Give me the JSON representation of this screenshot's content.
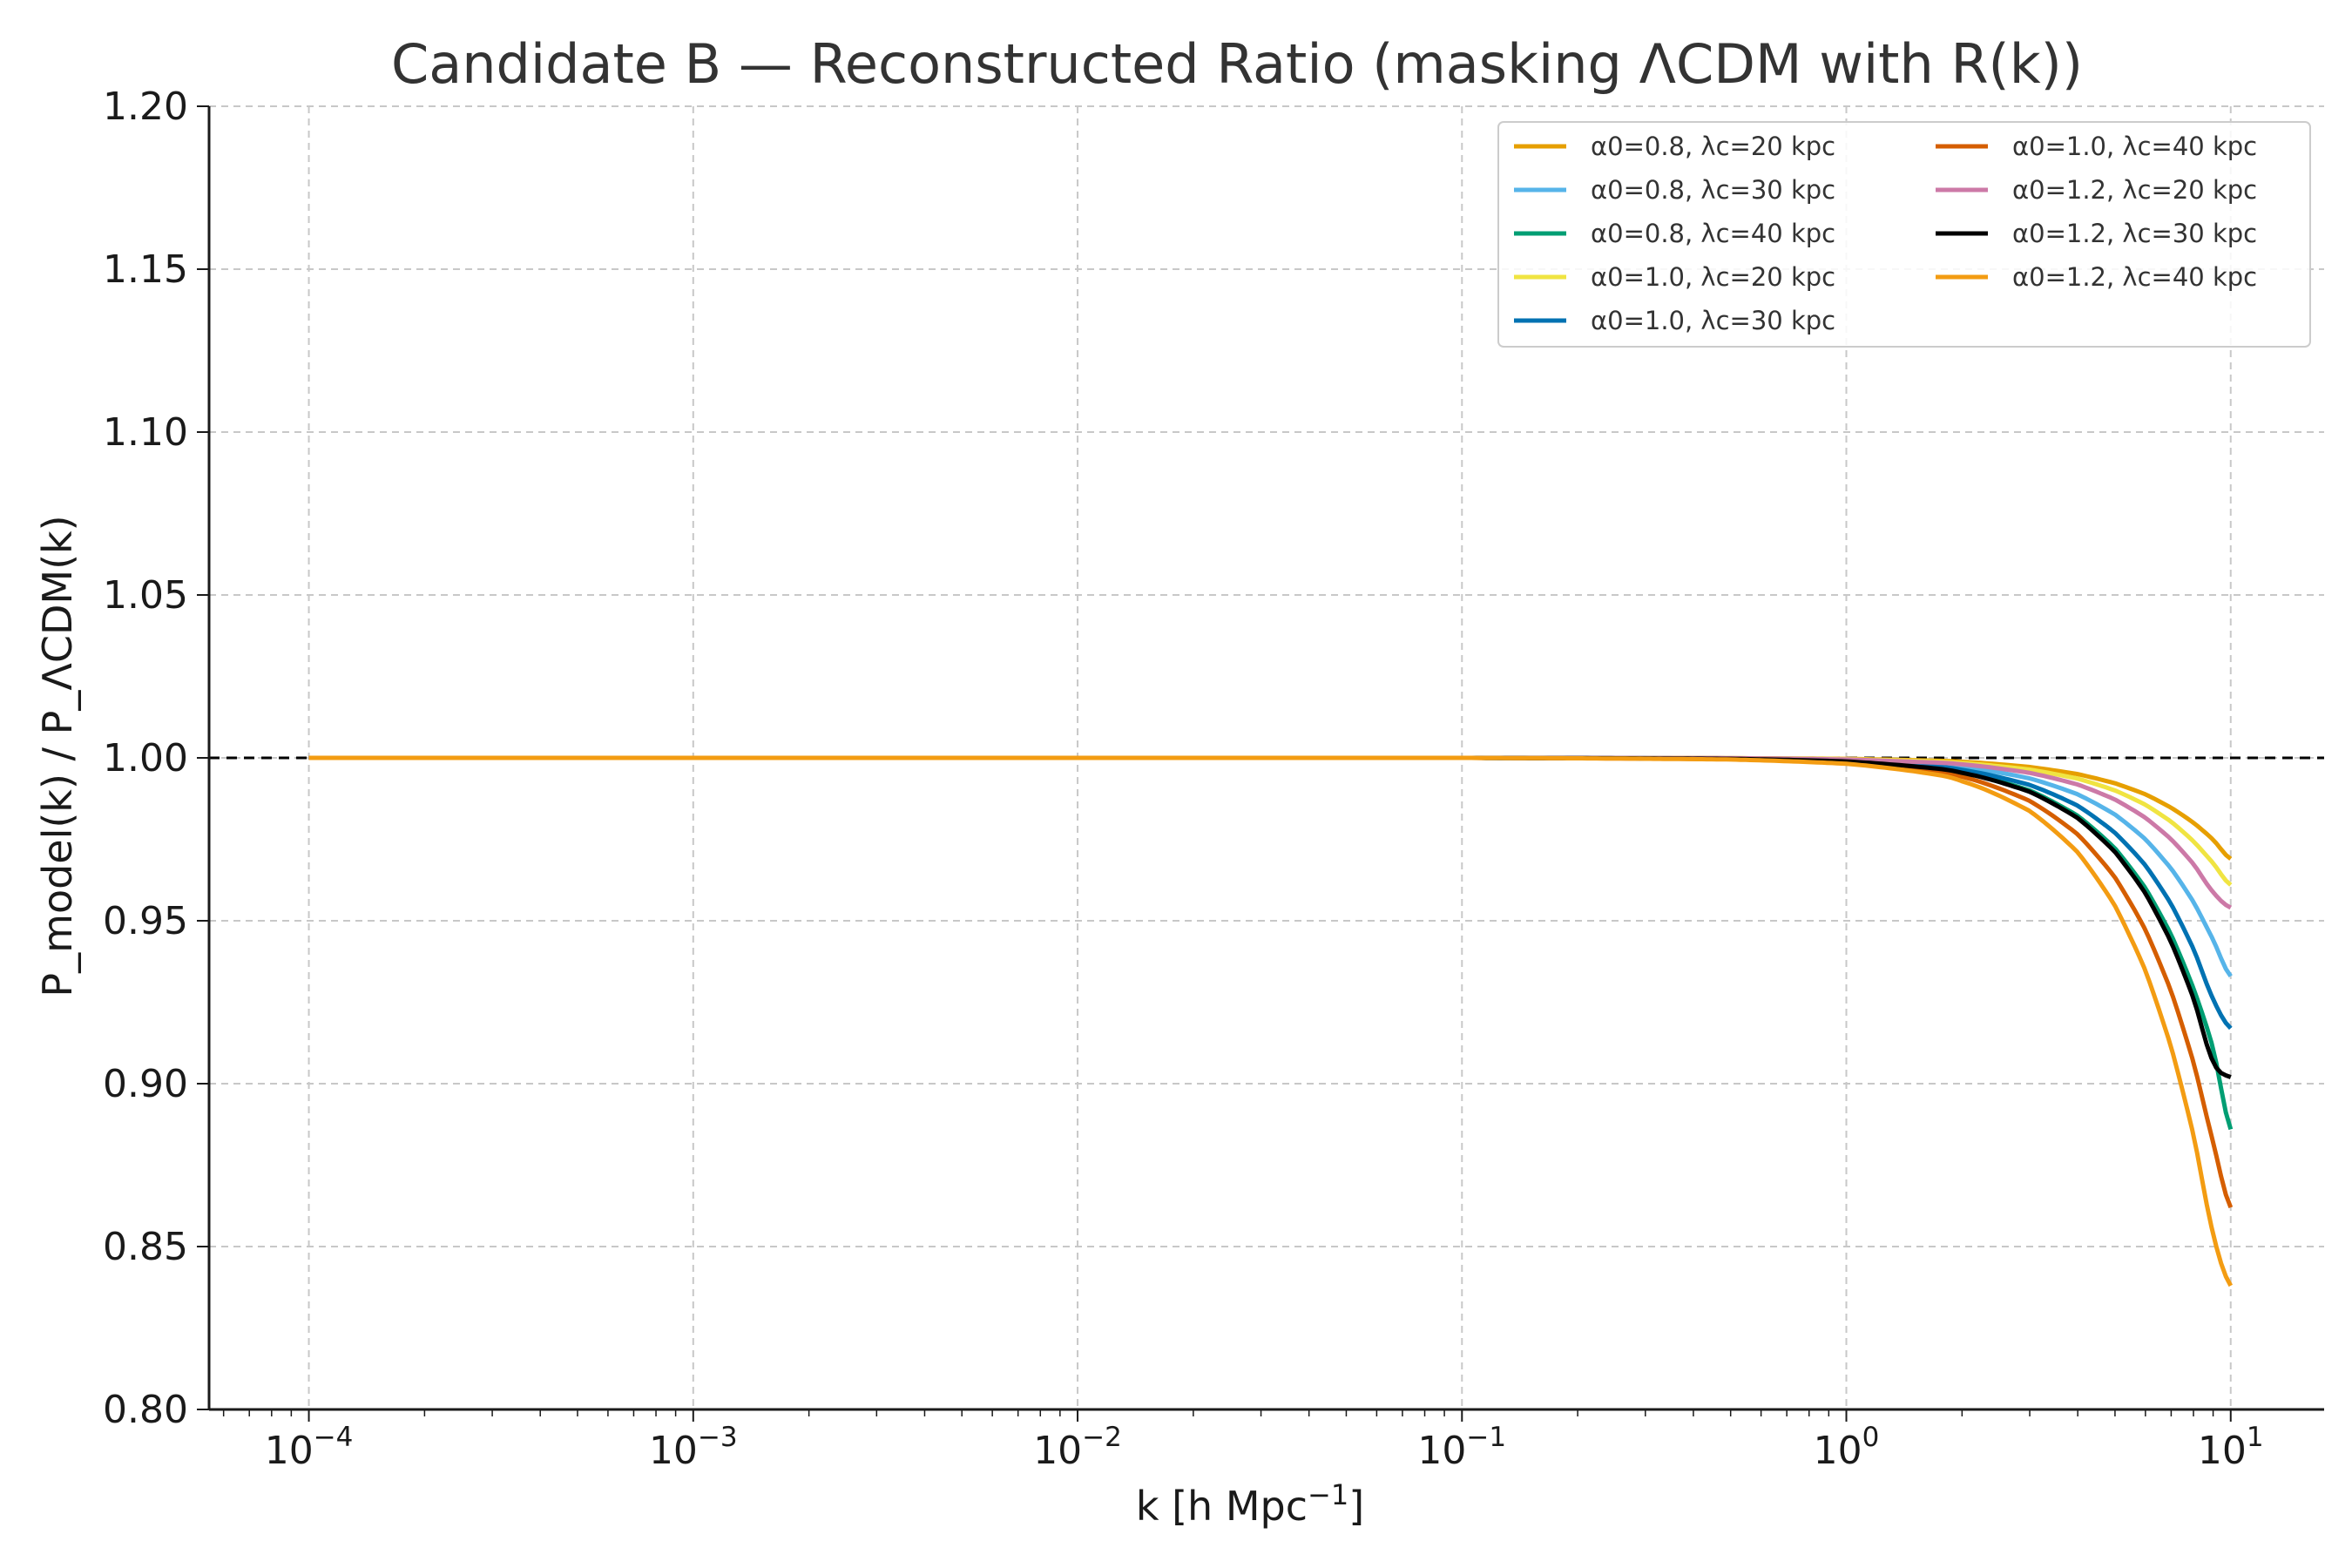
{
  "chart_data": {
    "type": "line",
    "title": "Candidate B — Reconstructed Ratio (masking ΛCDM with R(k))",
    "xlabel": {
      "main": "k  [h Mpc",
      "sup": "−1",
      "end": "]"
    },
    "ylabel": "P_model(k) / P_ΛCDM(k)",
    "xscale": "log",
    "xlim": [
      5.5e-05,
      17.5
    ],
    "ylim": [
      0.8,
      1.2
    ],
    "grid": true,
    "legend_position": "top-right",
    "legend_columns": 2,
    "x_ticks": [
      {
        "value": 0.0001,
        "base": "10",
        "exp": "−4"
      },
      {
        "value": 0.001,
        "base": "10",
        "exp": "−3"
      },
      {
        "value": 0.01,
        "base": "10",
        "exp": "−2"
      },
      {
        "value": 0.1,
        "base": "10",
        "exp": "−1"
      },
      {
        "value": 1,
        "base": "10",
        "exp": "0"
      },
      {
        "value": 10,
        "base": "10",
        "exp": "1"
      }
    ],
    "y_ticks": [
      "0.80",
      "0.85",
      "0.90",
      "0.95",
      "1.00",
      "1.05",
      "1.10",
      "1.15",
      "1.20"
    ],
    "reference_line": {
      "y": 1.0,
      "style": "dashed",
      "color": "#000000"
    },
    "x": [
      0.0001,
      0.001,
      0.01,
      0.1,
      0.5,
      1,
      1.5,
      2,
      3,
      4,
      5,
      6,
      7,
      8,
      9,
      10
    ],
    "series": [
      {
        "name": "α0=0.8, λc=20 kpc",
        "color": "#E69F00",
        "values": [
          1.0,
          1.0,
          1.0,
          1.0,
          0.9999,
          0.9997,
          0.9993,
          0.9988,
          0.9972,
          0.995,
          0.9922,
          0.9888,
          0.9847,
          0.9801,
          0.9749,
          0.969
        ]
      },
      {
        "name": "α0=0.8, λc=30 kpc",
        "color": "#56B4E9",
        "values": [
          1.0,
          1.0,
          1.0,
          1.0,
          0.9998,
          0.9993,
          0.9984,
          0.9972,
          0.9937,
          0.9888,
          0.9826,
          0.975,
          0.966,
          0.9558,
          0.9442,
          0.933
        ]
      },
      {
        "name": "α0=0.8, λc=40 kpc",
        "color": "#009E73",
        "values": [
          1.0,
          1.0,
          1.0,
          1.0,
          0.9997,
          0.9989,
          0.9975,
          0.9955,
          0.99,
          0.9822,
          0.9722,
          0.96,
          0.9457,
          0.9293,
          0.9108,
          0.886
        ]
      },
      {
        "name": "α0=1.0, λc=20 kpc",
        "color": "#F0E442",
        "values": [
          1.0,
          1.0,
          1.0,
          1.0,
          0.9999,
          0.9996,
          0.9991,
          0.9984,
          0.9964,
          0.9936,
          0.99,
          0.9856,
          0.9804,
          0.9744,
          0.9677,
          0.961
        ]
      },
      {
        "name": "α0=1.0, λc=30 kpc",
        "color": "#0072B2",
        "values": [
          1.0,
          1.0,
          1.0,
          1.0,
          0.9998,
          0.9991,
          0.9979,
          0.9963,
          0.9917,
          0.9853,
          0.977,
          0.967,
          0.9551,
          0.9414,
          0.926,
          0.917
        ]
      },
      {
        "name": "α0=1.0, λc=40 kpc",
        "color": "#D55E00",
        "values": [
          1.0,
          1.0,
          1.0,
          1.0,
          0.9996,
          0.9986,
          0.9967,
          0.9942,
          0.9868,
          0.9765,
          0.9633,
          0.9472,
          0.9283,
          0.9066,
          0.8821,
          0.862
        ]
      },
      {
        "name": "α0=1.2, λc=20 kpc",
        "color": "#CC79A7",
        "values": [
          1.0,
          1.0,
          1.0,
          1.0,
          0.9999,
          0.9995,
          0.9988,
          0.998,
          0.9954,
          0.9918,
          0.9872,
          0.9816,
          0.975,
          0.9674,
          0.9588,
          0.954
        ]
      },
      {
        "name": "α0=1.2, λc=30 kpc",
        "color": "#000000",
        "values": [
          1.0,
          1.0,
          1.0,
          1.0,
          0.9997,
          0.9989,
          0.9974,
          0.9954,
          0.9896,
          0.9815,
          0.9711,
          0.9584,
          0.9434,
          0.9262,
          0.9067,
          0.902
        ]
      },
      {
        "name": "α0=1.2, λc=40 kpc",
        "color": "#F39C12",
        "values": [
          1.0,
          1.0,
          1.0,
          1.0,
          0.9995,
          0.9982,
          0.9959,
          0.9928,
          0.9837,
          0.971,
          0.9546,
          0.9347,
          0.9112,
          0.8843,
          0.854,
          0.838
        ]
      }
    ]
  }
}
